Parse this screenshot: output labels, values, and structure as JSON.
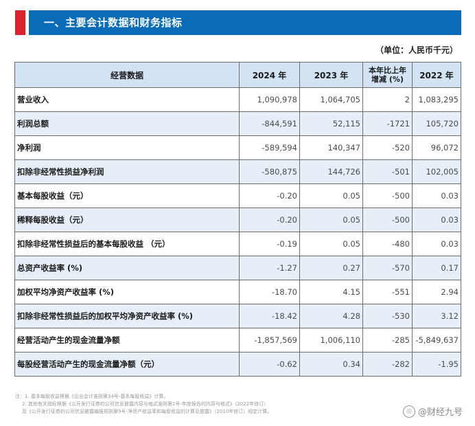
{
  "header": {
    "title": "一、主要会计数据和财务指标"
  },
  "unit_note": "（单位：人民币千元）",
  "table": {
    "columns": [
      "经营数据",
      "2024 年",
      "2023 年",
      "本年比上年增减 (%)",
      "2022 年"
    ],
    "rows": [
      {
        "label": "营业收入",
        "v2024": "1,090,978",
        "v2023": "1,064,705",
        "change": "2",
        "v2022": "1,083,295"
      },
      {
        "label": "利润总额",
        "v2024": "-844,591",
        "v2023": "52,115",
        "change": "-1721",
        "v2022": "105,720"
      },
      {
        "label": "净利润",
        "v2024": "-589,594",
        "v2023": "140,347",
        "change": "-520",
        "v2022": "96,072"
      },
      {
        "label": "扣除非经常性损益净利润",
        "v2024": "-580,875",
        "v2023": "144,726",
        "change": "-501",
        "v2022": "102,005"
      },
      {
        "label": "基本每股收益（元）",
        "v2024": "-0.20",
        "v2023": "0.05",
        "change": "-500",
        "v2022": "0.03"
      },
      {
        "label": "稀释每股收益（元）",
        "v2024": "-0.20",
        "v2023": "0.05",
        "change": "-500",
        "v2022": "0.03"
      },
      {
        "label": "扣除非经常性损益后的基本每股收益 （元）",
        "v2024": "-0.19",
        "v2023": "0.05",
        "change": "-480",
        "v2022": "0.03"
      },
      {
        "label": "总资产收益率 (%)",
        "v2024": "-1.27",
        "v2023": "0.27",
        "change": "-570",
        "v2022": "0.17"
      },
      {
        "label": "加权平均净资产收益率 (%)",
        "v2024": "-18.70",
        "v2023": "4.15",
        "change": "-551",
        "v2022": "2.94"
      },
      {
        "label": "扣除非经常性损益后的加权平均净资产收益率 (%)",
        "v2024": "-18.42",
        "v2023": "4.28",
        "change": "-530",
        "v2022": "3.12"
      },
      {
        "label": "经营活动产生的现金流量净额",
        "v2024": "-1,857,569",
        "v2023": "1,006,110",
        "change": "-285",
        "v2022": "-5,849,637"
      },
      {
        "label": "每股经营活动产生的现金流量净额（元）",
        "v2024": "-0.62",
        "v2023": "0.34",
        "change": "-282",
        "v2022": "-1.95"
      }
    ]
  },
  "notes": [
    "注：1. 基本每股收益根据《企业会计准则第34号-基本每股收益》计算。",
    "2. 其他有关指标根据《公开发行证券的公司信息披露内容与格式准则第2号-年度报告的内容与格式》（2022年修订）",
    "及《公开发行证券的公司信息披露编报规则第9号-净资产收益率和每股收益的计算及披露》（2010年修订）规定计算。"
  ],
  "watermark": {
    "text": "@财经九号",
    "icon": "camera-lens-icon"
  }
}
